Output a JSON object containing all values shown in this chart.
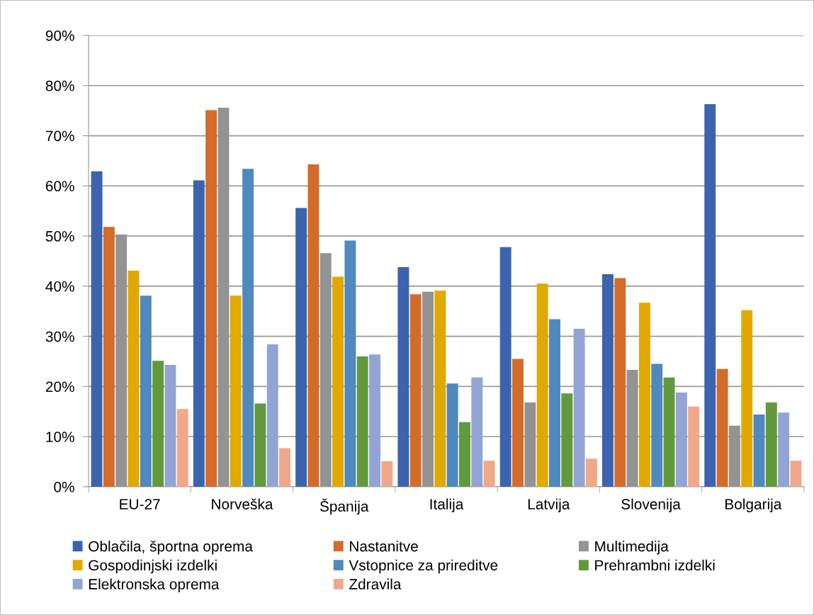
{
  "chart_data": {
    "type": "bar",
    "categories": [
      "EU-27",
      "Norveška",
      "Španija",
      "Italija",
      "Latvija",
      "Slovenija",
      "Bolgarija"
    ],
    "series": [
      {
        "name": "Oblačila, športna oprema",
        "color": "#3c64ae",
        "values": [
          62.9,
          61.1,
          55.6,
          43.8,
          47.8,
          42.4,
          76.3
        ]
      },
      {
        "name": "Nastanitve",
        "color": "#d36c2a",
        "values": [
          51.8,
          75.1,
          64.3,
          38.4,
          25.5,
          41.6,
          23.5
        ]
      },
      {
        "name": "Multimedija",
        "color": "#939393",
        "values": [
          50.3,
          75.6,
          46.6,
          38.9,
          16.8,
          23.3,
          12.2
        ]
      },
      {
        "name": "Gospodinjski izdelki",
        "color": "#e1a900",
        "values": [
          43.1,
          38.1,
          41.9,
          39.1,
          40.5,
          36.7,
          35.2
        ]
      },
      {
        "name": "Vstopnice za prireditve",
        "color": "#4f89bd",
        "values": [
          38.1,
          63.4,
          49.1,
          20.6,
          33.4,
          24.5,
          14.4
        ]
      },
      {
        "name": "Prehrambni izdelki",
        "color": "#63993d",
        "values": [
          25.1,
          16.6,
          26.0,
          12.9,
          18.6,
          21.8,
          16.8
        ]
      },
      {
        "name": "Elektronska oprema",
        "color": "#91a4d4",
        "values": [
          24.3,
          28.4,
          26.4,
          21.8,
          31.5,
          18.8,
          14.8
        ]
      },
      {
        "name": "Zdravila",
        "color": "#f0a88a",
        "values": [
          15.5,
          7.7,
          5.1,
          5.2,
          5.6,
          16.0,
          5.2
        ]
      }
    ],
    "ylim": [
      0,
      90
    ],
    "yticks": [
      {
        "value": 0,
        "label": "0%"
      },
      {
        "value": 10,
        "label": "10%"
      },
      {
        "value": 20,
        "label": "20%"
      },
      {
        "value": 30,
        "label": "30%"
      },
      {
        "value": 40,
        "label": "40%"
      },
      {
        "value": 50,
        "label": "50%"
      },
      {
        "value": 60,
        "label": "60%"
      },
      {
        "value": 70,
        "label": "70%"
      },
      {
        "value": 80,
        "label": "80%"
      },
      {
        "value": 90,
        "label": "90%"
      }
    ],
    "grid": "y",
    "legend": "bottom"
  }
}
